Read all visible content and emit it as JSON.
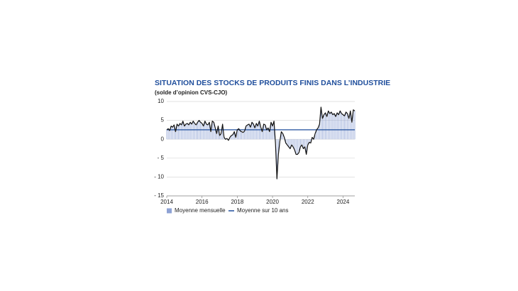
{
  "chart_data": {
    "type": "bar-line",
    "title": "SITUATION DES STOCKS DE PRODUITS FINIS DANS L’INDUSTRIE",
    "subtitle": "(solde d’opinion CVS-CJO)",
    "categories": [
      "2014",
      null,
      null,
      null,
      null,
      null,
      null,
      null,
      null,
      null,
      null,
      null,
      null,
      null,
      null,
      null,
      null,
      null,
      null,
      null,
      null,
      null,
      null,
      null,
      "2016",
      null,
      null,
      null,
      null,
      null,
      null,
      null,
      null,
      null,
      null,
      null,
      null,
      null,
      null,
      null,
      null,
      null,
      null,
      null,
      null,
      null,
      null,
      null,
      "2018",
      null,
      null,
      null,
      null,
      null,
      null,
      null,
      null,
      null,
      null,
      null,
      null,
      null,
      null,
      null,
      null,
      null,
      null,
      null,
      null,
      null,
      null,
      null,
      "2020",
      null,
      null,
      null,
      null,
      null,
      null,
      null,
      null,
      null,
      null,
      null,
      null,
      null,
      null,
      null,
      null,
      null,
      null,
      null,
      null,
      null,
      null,
      null,
      "2022",
      null,
      null,
      null,
      null,
      null,
      null,
      null,
      null,
      null,
      null,
      null,
      null,
      null,
      null,
      null,
      null,
      null,
      null,
      null,
      null,
      null,
      null,
      null,
      "2024",
      null,
      null,
      null,
      null,
      null,
      null,
      null,
      null
    ],
    "series": [
      {
        "name": "Moyenne mensuelle",
        "color": "#8ea2d4",
        "line_color": "#111111",
        "values": [
          2.5,
          2.8,
          2.3,
          3.5,
          3.2,
          3.8,
          2.0,
          4.0,
          3.5,
          4.2,
          3.8,
          4.8,
          3.5,
          4.0,
          4.2,
          3.8,
          4.5,
          4.0,
          4.8,
          4.2,
          3.8,
          4.5,
          5.0,
          4.5,
          4.2,
          3.5,
          4.8,
          4.0,
          3.8,
          4.5,
          2.0,
          4.8,
          4.5,
          3.0,
          1.5,
          3.5,
          1.0,
          1.5,
          4.0,
          0.5,
          0.0,
          0.2,
          -0.3,
          0.5,
          1.0,
          1.2,
          2.0,
          0.5,
          2.5,
          2.8,
          2.2,
          2.0,
          1.8,
          2.2,
          3.5,
          3.8,
          4.0,
          3.2,
          4.5,
          4.0,
          3.0,
          4.2,
          3.5,
          4.8,
          3.2,
          2.0,
          4.0,
          3.8,
          2.5,
          3.0,
          2.0,
          4.5,
          3.5,
          4.8,
          -1.0,
          -10.5,
          -4.0,
          -0.5,
          2.0,
          1.5,
          0.5,
          -1.0,
          -1.5,
          -2.0,
          -2.5,
          -1.5,
          -2.0,
          -2.8,
          -4.0,
          -4.0,
          -3.5,
          -2.0,
          -1.5,
          -2.5,
          -2.0,
          -4.0,
          -1.5,
          -0.8,
          -1.0,
          0.5,
          0.0,
          1.5,
          2.5,
          3.0,
          4.0,
          8.5,
          5.5,
          6.5,
          7.0,
          6.0,
          7.5,
          6.8,
          7.2,
          6.5,
          6.8,
          6.0,
          7.0,
          6.5,
          7.5,
          6.8,
          6.5,
          6.2,
          7.2,
          6.8,
          5.5,
          7.5,
          4.5,
          7.8,
          7.5
        ]
      }
    ],
    "average": {
      "name": "Moyenne sur 10 ans",
      "value": 2.5,
      "color": "#1f4e9c"
    },
    "ylim": [
      -15,
      10
    ],
    "yticks": [
      10,
      5,
      0,
      {
        "value": -5,
        "label": "- 5"
      },
      {
        "value": -10,
        "label": "- 10"
      },
      {
        "value": -15,
        "label": "- 15"
      }
    ],
    "grid": true
  }
}
